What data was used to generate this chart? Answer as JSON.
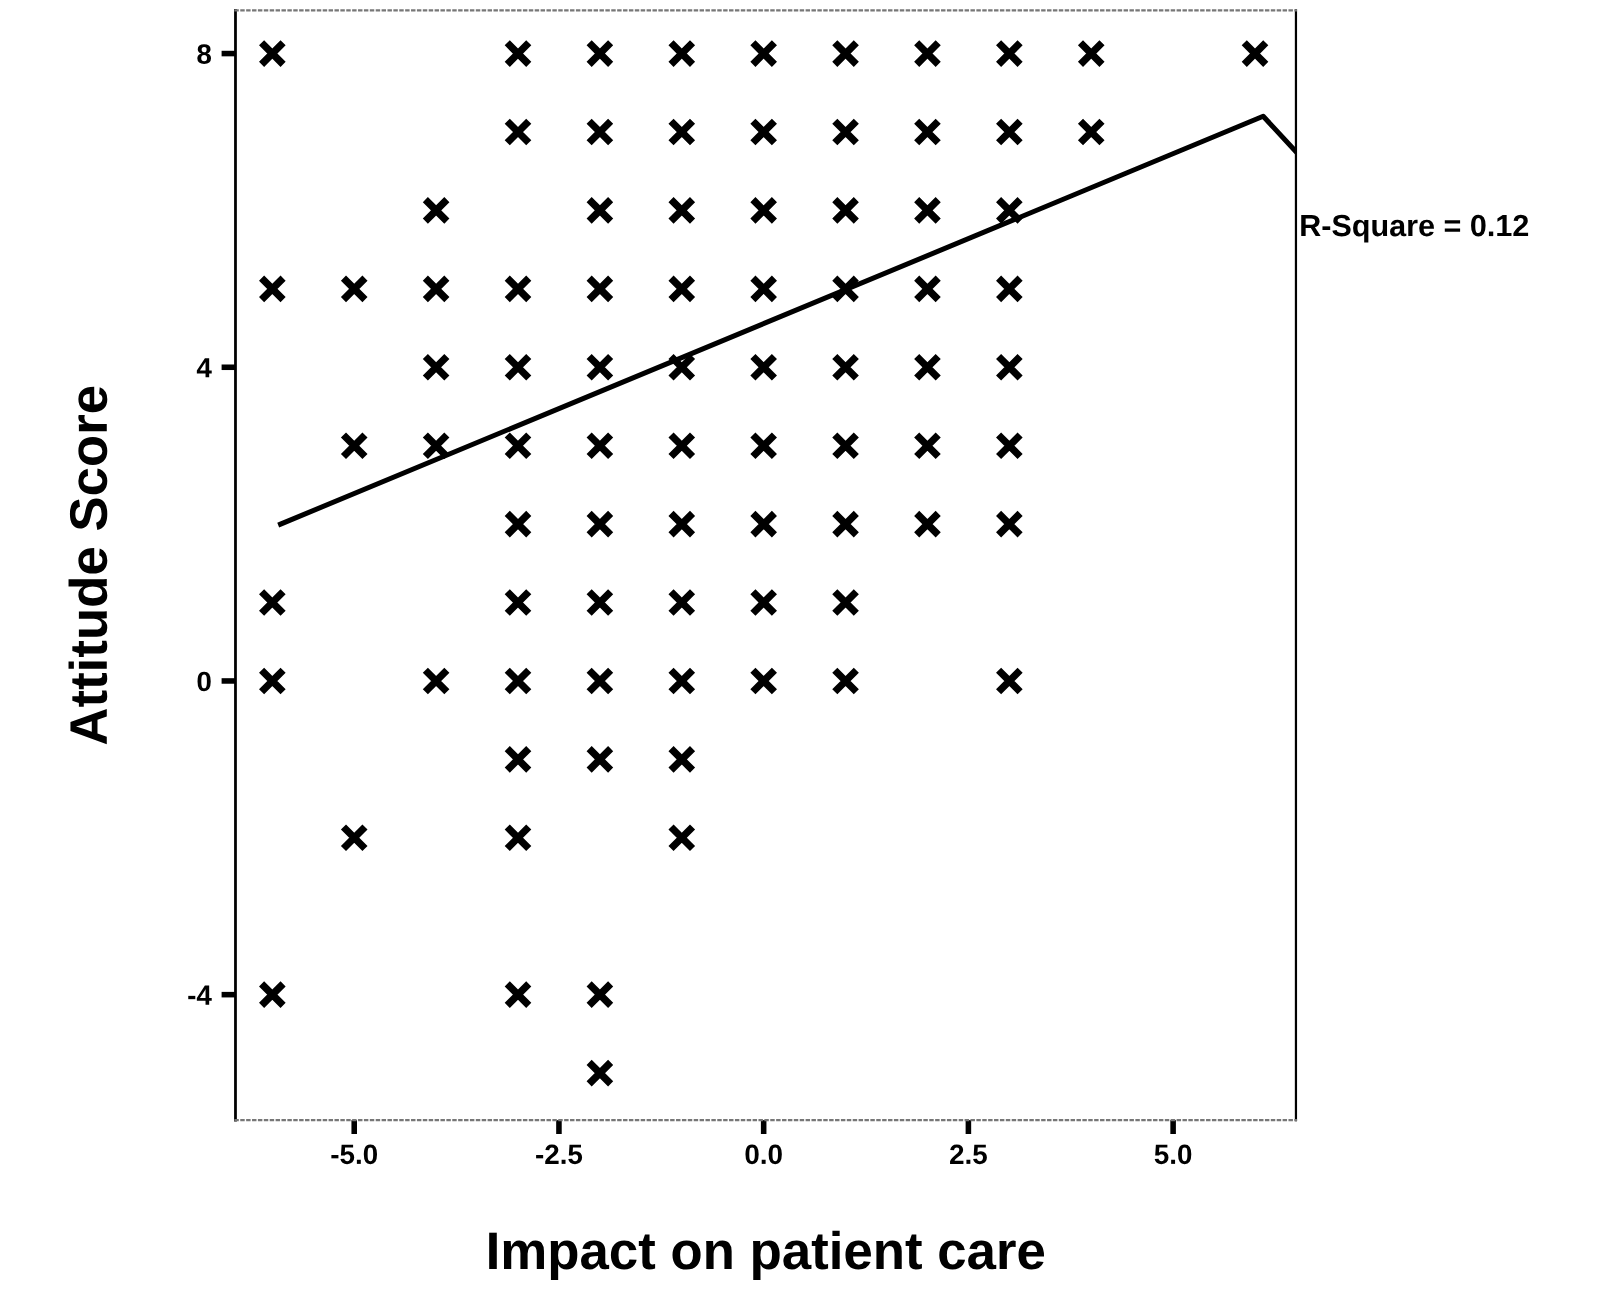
{
  "chart_data": {
    "type": "scatter",
    "xlabel": "Impact on patient care",
    "ylabel": "Attitude Score",
    "annotations": [
      "R-Square = 0.12"
    ],
    "xlim": [
      -6.45,
      6.5
    ],
    "ylim": [
      -5.6,
      8.55
    ],
    "xticks": [
      {
        "value": -5,
        "label": "-5.0"
      },
      {
        "value": -2.5,
        "label": "-2.5"
      },
      {
        "value": 0,
        "label": "0.0"
      },
      {
        "value": 2.5,
        "label": "2.5"
      },
      {
        "value": 5,
        "label": "5.0"
      }
    ],
    "yticks": [
      -4,
      0,
      4,
      8
    ],
    "grid": false,
    "legend": false,
    "series": [
      {
        "marker": "cross",
        "color": "#000000",
        "x": [
          -6,
          -3,
          -2,
          -1,
          0,
          1,
          2,
          3,
          4,
          6,
          -3,
          -2,
          -1,
          0,
          1,
          2,
          3,
          4,
          -4,
          -2,
          -1,
          0,
          1,
          2,
          3,
          -6,
          -5,
          -4,
          -3,
          -2,
          -1,
          0,
          1,
          2,
          3,
          -4,
          -3,
          -2,
          -1,
          0,
          1,
          2,
          3,
          -5,
          -4,
          -3,
          -2,
          -1,
          0,
          1,
          2,
          3,
          -3,
          -2,
          -1,
          0,
          1,
          2,
          3,
          -6,
          -3,
          -2,
          -1,
          0,
          1,
          -6,
          -4,
          -3,
          -2,
          -1,
          0,
          1,
          3,
          -3,
          -2,
          -1,
          -5,
          -3,
          -1,
          -6,
          -3,
          -2,
          -2
        ],
        "values": [
          8,
          8,
          8,
          8,
          8,
          8,
          8,
          8,
          8,
          8,
          7,
          7,
          7,
          7,
          7,
          7,
          7,
          7,
          6,
          6,
          6,
          6,
          6,
          6,
          6,
          5,
          5,
          5,
          5,
          5,
          5,
          5,
          5,
          5,
          5,
          4,
          4,
          4,
          4,
          4,
          4,
          4,
          4,
          3,
          3,
          3,
          3,
          3,
          3,
          3,
          3,
          3,
          2,
          2,
          2,
          2,
          2,
          2,
          2,
          1,
          1,
          1,
          1,
          1,
          1,
          0,
          0,
          0,
          0,
          0,
          0,
          0,
          0,
          -1,
          -1,
          -1,
          -2,
          -2,
          -2,
          -4,
          -4,
          -4,
          -5
        ]
      },
      {
        "type": "line",
        "marker": "none",
        "color": "#000000",
        "line_style": "solid",
        "x": [
          -5.9,
          6.1,
          6.5
        ],
        "values": [
          2.0,
          7.2,
          6.75
        ]
      }
    ]
  }
}
